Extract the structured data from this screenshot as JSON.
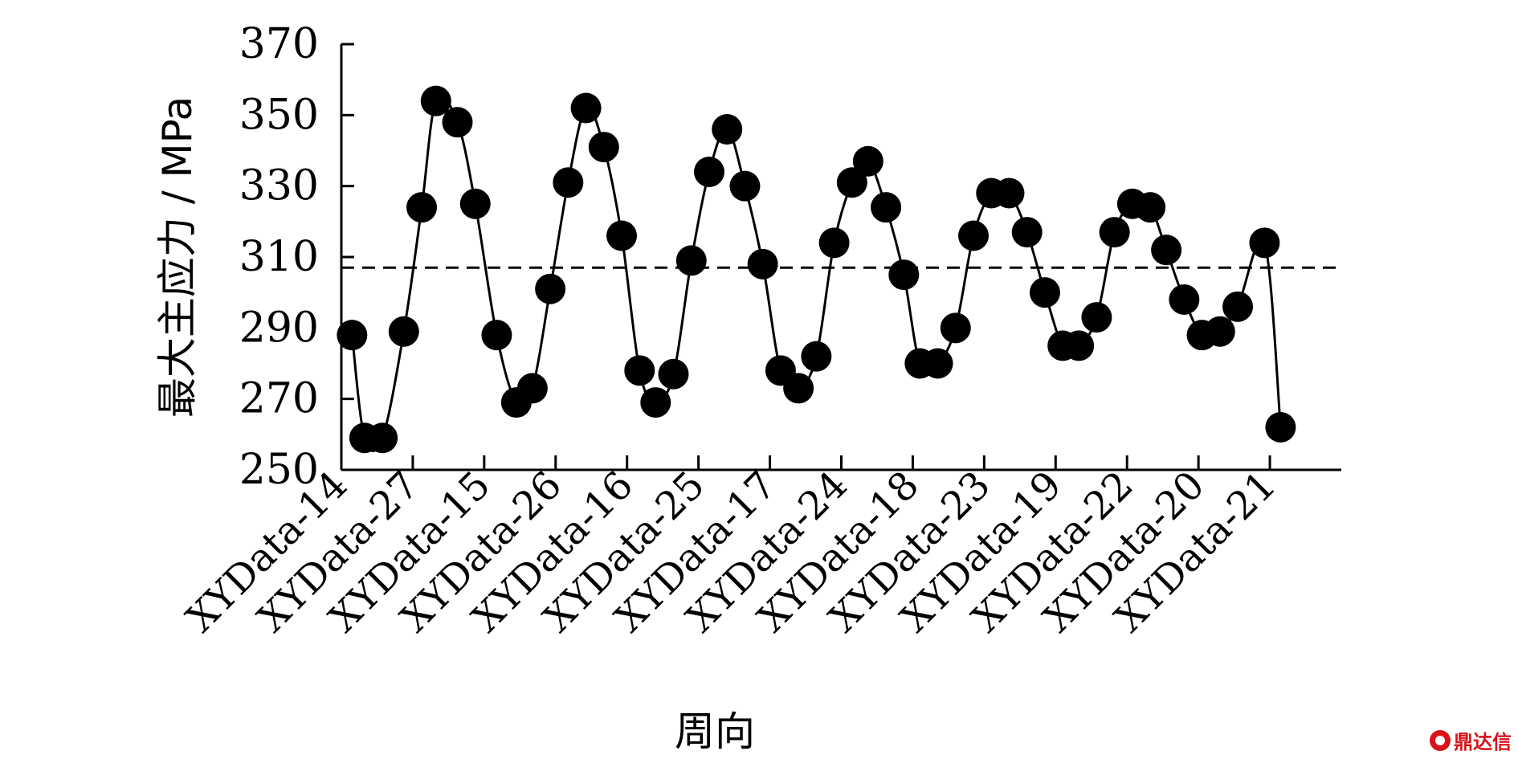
{
  "chart_data": {
    "type": "line",
    "title": "",
    "xlabel": "周向",
    "ylabel": "最大主应力 / MPa",
    "ylim": [
      250,
      370
    ],
    "yticks": [
      250,
      270,
      290,
      310,
      330,
      350,
      370
    ],
    "xlim": [
      0,
      56
    ],
    "xticks": [
      {
        "x": 0,
        "label": "XYData-14"
      },
      {
        "x": 4,
        "label": "XYData-27"
      },
      {
        "x": 8,
        "label": "XYData-15"
      },
      {
        "x": 12,
        "label": "XYData-26"
      },
      {
        "x": 16,
        "label": "XYData-16"
      },
      {
        "x": 20,
        "label": "XYData-25"
      },
      {
        "x": 24,
        "label": "XYData-17"
      },
      {
        "x": 28,
        "label": "XYData-24"
      },
      {
        "x": 32,
        "label": "XYData-18"
      },
      {
        "x": 36,
        "label": "XYData-23"
      },
      {
        "x": 40,
        "label": "XYData-19"
      },
      {
        "x": 44,
        "label": "XYData-22"
      },
      {
        "x": 48,
        "label": "XYData-20"
      },
      {
        "x": 52,
        "label": "XYData-21"
      }
    ],
    "reference_line": {
      "y": 307,
      "style": "dashed"
    },
    "grid": false,
    "series": [
      {
        "marker": "circle",
        "color": "#000000",
        "points": [
          [
            0.6,
            288
          ],
          [
            1.3,
            259
          ],
          [
            2.3,
            259
          ],
          [
            3.5,
            289
          ],
          [
            4.5,
            324
          ],
          [
            5.3,
            354
          ],
          [
            6.5,
            348
          ],
          [
            7.5,
            325
          ],
          [
            8.7,
            288
          ],
          [
            9.8,
            269
          ],
          [
            10.7,
            273
          ],
          [
            11.7,
            301
          ],
          [
            12.7,
            331
          ],
          [
            13.7,
            352
          ],
          [
            14.7,
            341
          ],
          [
            15.7,
            316
          ],
          [
            16.7,
            278
          ],
          [
            17.6,
            269
          ],
          [
            18.6,
            277
          ],
          [
            19.6,
            309
          ],
          [
            20.6,
            334
          ],
          [
            21.6,
            346
          ],
          [
            22.6,
            330
          ],
          [
            23.6,
            308
          ],
          [
            24.6,
            278
          ],
          [
            25.6,
            273
          ],
          [
            26.6,
            282
          ],
          [
            27.6,
            314
          ],
          [
            28.6,
            331
          ],
          [
            29.5,
            337
          ],
          [
            30.5,
            324
          ],
          [
            31.5,
            305
          ],
          [
            32.4,
            280
          ],
          [
            33.4,
            280
          ],
          [
            34.4,
            290
          ],
          [
            35.4,
            316
          ],
          [
            36.4,
            328
          ],
          [
            37.4,
            328
          ],
          [
            38.4,
            317
          ],
          [
            39.4,
            300
          ],
          [
            40.4,
            285
          ],
          [
            41.3,
            285
          ],
          [
            42.3,
            293
          ],
          [
            43.3,
            317
          ],
          [
            44.3,
            325
          ],
          [
            45.3,
            324
          ],
          [
            46.2,
            312
          ],
          [
            47.2,
            298
          ],
          [
            48.2,
            288
          ],
          [
            49.2,
            289
          ],
          [
            50.2,
            296
          ],
          [
            51.7,
            314
          ],
          [
            52.6,
            262
          ]
        ]
      }
    ]
  },
  "watermark": "鼎达信"
}
